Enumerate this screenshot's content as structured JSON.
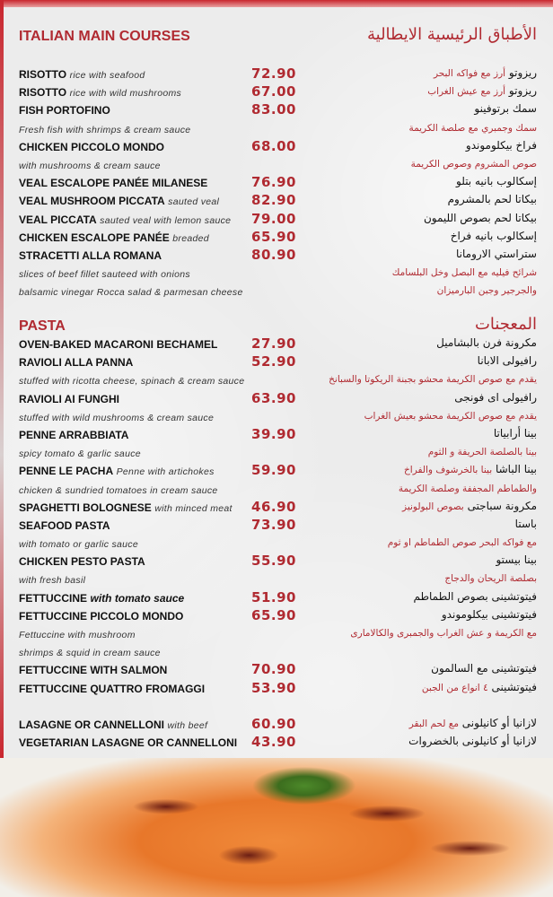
{
  "main_courses": {
    "title": "ITALIAN MAIN COURSES",
    "title_ar": "الأطباق الرئيسية الايطالية",
    "rows": [
      {
        "name": "RISOTTO",
        "desc": "rice with seafood",
        "price": "72.90",
        "ar_name": "ريزوتو",
        "ar_desc": "أرز مع فواكه البحر"
      },
      {
        "name": "RISOTTO",
        "desc": "rice with wild mushrooms",
        "price": "67.00",
        "ar_name": "ريزوتو",
        "ar_desc": "أرز مع عيش الغراب"
      },
      {
        "name": "FISH PORTOFINO",
        "desc": "",
        "price": "83.00",
        "ar_name": "سمك برتوفينو",
        "ar_desc": ""
      },
      {
        "name": "",
        "desc": "Fresh fish with shrimps & cream sauce",
        "price": "",
        "ar_name": "",
        "ar_desc": "سمك وجمبري مع صلصة الكريمة"
      },
      {
        "name": "CHICKEN PICCOLO MONDO",
        "desc": "",
        "price": "68.00",
        "ar_name": "فراخ بيكلوموندو",
        "ar_desc": ""
      },
      {
        "name": "",
        "desc": "with mushrooms & cream sauce",
        "price": "",
        "ar_name": "",
        "ar_desc": "صوص المشروم وصوص الكريمة"
      },
      {
        "name": "VEAL ESCALOPE PANÉE MILANESE",
        "desc": "",
        "price": "76.90",
        "ar_name": "إسكالوب بانيه بتلو",
        "ar_desc": ""
      },
      {
        "name": "VEAL MUSHROOM PICCATA",
        "desc": "sauted veal",
        "price": "82.90",
        "ar_name": "بيكاتا لحم بالمشروم",
        "ar_desc": ""
      },
      {
        "name": "VEAL PICCATA",
        "desc": "sauted veal with lemon sauce",
        "price": "79.00",
        "ar_name": "بيكاتا لحم بصوص الليمون",
        "ar_desc": ""
      },
      {
        "name": "CHICKEN ESCALOPE PANÉE",
        "desc": "breaded",
        "price": "65.90",
        "ar_name": "إسكالوب بانيه فراخ",
        "ar_desc": ""
      },
      {
        "name": "STRACETTI ALLA ROMANA",
        "desc": "",
        "price": "80.90",
        "ar_name": "ستراستي الارومانا",
        "ar_desc": ""
      },
      {
        "name": "",
        "desc": "slices of beef fillet sauteed with onions",
        "price": "",
        "ar_name": "",
        "ar_desc": "شرائح فيليه مع البصل وخل البلسامك"
      },
      {
        "name": "",
        "desc": "balsamic vinegar Rocca salad & parmesan cheese",
        "price": "",
        "ar_name": "",
        "ar_desc": "والجرجير وجبن البارميزان"
      }
    ]
  },
  "pasta": {
    "title": "PASTA",
    "title_ar": "المعجنات",
    "rows": [
      {
        "name": "OVEN-BAKED MACARONI BECHAMEL",
        "desc": "",
        "price": "27.90",
        "ar_name": "مكرونة فرن بالبشاميل",
        "ar_desc": ""
      },
      {
        "name": "RAVIOLI ALLA PANNA",
        "desc": "",
        "price": "52.90",
        "ar_name": "رافيولى الابانا",
        "ar_desc": ""
      },
      {
        "name": "",
        "desc": "stuffed with ricotta cheese, spinach & cream sauce",
        "price": "",
        "ar_name": "",
        "ar_desc": "يقدم مع صوص الكريمة محشو بجبنة الريكوتا والسبانخ"
      },
      {
        "name": "RAVIOLI AI FUNGHI",
        "desc": "",
        "price": "63.90",
        "ar_name": "رافيولى اى فونجى",
        "ar_desc": ""
      },
      {
        "name": "",
        "desc": "stuffed with wild mushrooms & cream sauce",
        "price": "",
        "ar_name": "",
        "ar_desc": "يقدم مع صوص الكريمة محشو بعيش الغراب"
      },
      {
        "name": "PENNE ARRABBIATA",
        "desc": "",
        "price": "39.90",
        "ar_name": "بينا أرابياتا",
        "ar_desc": ""
      },
      {
        "name": "",
        "desc": "spicy tomato & garlic sauce",
        "price": "",
        "ar_name": "",
        "ar_desc": "بينا بالصلصة الحريفة و الثوم"
      },
      {
        "name": "PENNE LE PACHA",
        "desc": "Penne with artichokes",
        "price": "59.90",
        "ar_name": "بينا الباشا",
        "ar_desc": "بينا بالخرشوف والفراخ"
      },
      {
        "name": "",
        "desc": "chicken & sundried tomatoes in cream sauce",
        "price": "",
        "ar_name": "",
        "ar_desc": "والطماطم المجففة وصلصة الكريمة"
      },
      {
        "name": "SPAGHETTI BOLOGNESE",
        "desc": "with minced meat",
        "price": "46.90",
        "ar_name": "مكرونة سباجتى",
        "ar_desc": "بصوص البولونيز"
      },
      {
        "name": "SEAFOOD PASTA",
        "desc": "",
        "price": "73.90",
        "ar_name": "باستا",
        "ar_desc": ""
      },
      {
        "name": "",
        "desc": "with tomato or garlic sauce",
        "price": "",
        "ar_name": "",
        "ar_desc": "مع فواكه البحر  صوص الطماطم او ثوم"
      },
      {
        "name": "CHICKEN PESTO PASTA",
        "desc": "",
        "price": "55.90",
        "ar_name": "بينا بيستو",
        "ar_desc": ""
      },
      {
        "name": "",
        "desc": "with fresh basil",
        "price": "",
        "ar_name": "",
        "ar_desc": "بصلصة الريحان والدجاج"
      },
      {
        "name": "FETTUCCINE",
        "desc": "with tomato sauce",
        "price": "51.90",
        "ar_name": "فيتوتشينى بصوص الطماطم",
        "ar_desc": "",
        "big_desc": true
      },
      {
        "name": "FETTUCCINE PICCOLO MONDO",
        "desc": "",
        "price": "65.90",
        "ar_name": "فيتوتشينى بيكلوموندو",
        "ar_desc": ""
      },
      {
        "name": "",
        "desc": "Fettuccine with mushroom",
        "price": "",
        "ar_name": "",
        "ar_desc": "مع الكريمة و عش الغراب والجمبرى والكالامارى"
      },
      {
        "name": "",
        "desc": " shrimps & squid in cream sauce",
        "price": "",
        "ar_name": "",
        "ar_desc": ""
      },
      {
        "name": "FETTUCCINE WITH SALMON",
        "desc": "",
        "price": "70.90",
        "ar_name": "فيتوتشينى مع السالمون",
        "ar_desc": ""
      },
      {
        "name": "FETTUCCINE QUATTRO FROMAGGI",
        "desc": "",
        "price": "53.90",
        "ar_name": "فيتوتشينى",
        "ar_desc": "٤ انواع من الجبن"
      },
      {
        "name": "",
        "desc": "",
        "price": "",
        "ar_name": "",
        "ar_desc": ""
      },
      {
        "name": "LASAGNE OR CANNELLONI",
        "desc": "with beef",
        "price": "60.90",
        "ar_name": "لازانيا  أو كانيلونى",
        "ar_desc": "مع لحم البقر"
      },
      {
        "name": "VEGETARIAN LASAGNE OR CANNELLONI",
        "desc": "",
        "price": "43.90",
        "ar_name": "لازانيا أو كانيلونى بالخضروات",
        "ar_desc": ""
      }
    ]
  },
  "colors": {
    "accent": "#b02a31",
    "background": "#ececec",
    "text": "#111111"
  }
}
